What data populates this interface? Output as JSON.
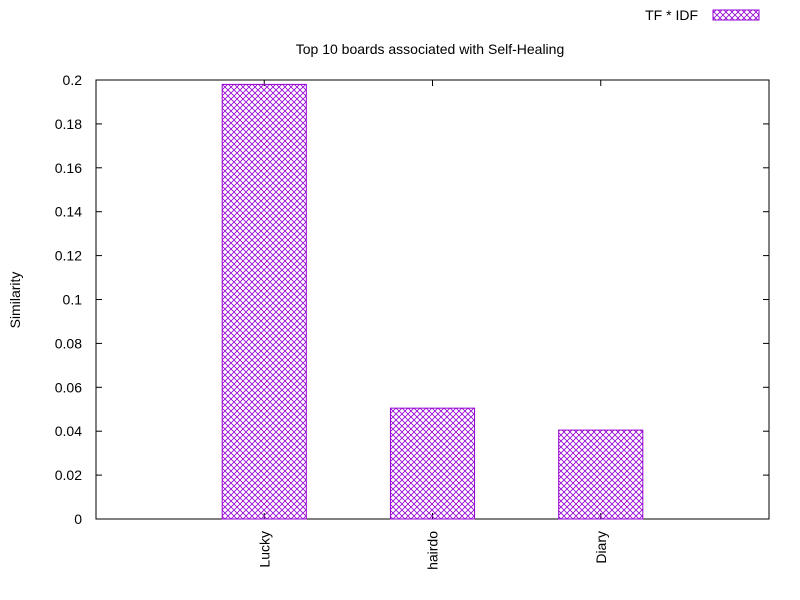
{
  "chart_data": {
    "type": "bar",
    "title": "Top 10 boards associated with Self-Healing",
    "xlabel": "",
    "ylabel": "Similarity",
    "categories": [
      "Lucky",
      "hairdo",
      "Diary"
    ],
    "series": [
      {
        "name": "TF * IDF",
        "values": [
          0.198,
          0.0505,
          0.0405
        ],
        "color": "#9400d3"
      }
    ],
    "ylim": [
      0,
      0.2
    ],
    "yticks": [
      "0",
      "0.02",
      "0.04",
      "0.06",
      "0.08",
      "0.1",
      "0.12",
      "0.14",
      "0.16",
      "0.18",
      "0.2"
    ],
    "ytick_values": [
      0,
      0.02,
      0.04,
      0.06,
      0.08,
      0.1,
      0.12,
      0.14,
      0.16,
      0.18,
      0.2
    ],
    "x_slots": 4,
    "grid": false,
    "legend": "top-right",
    "bar_pattern": "crosshatch"
  }
}
